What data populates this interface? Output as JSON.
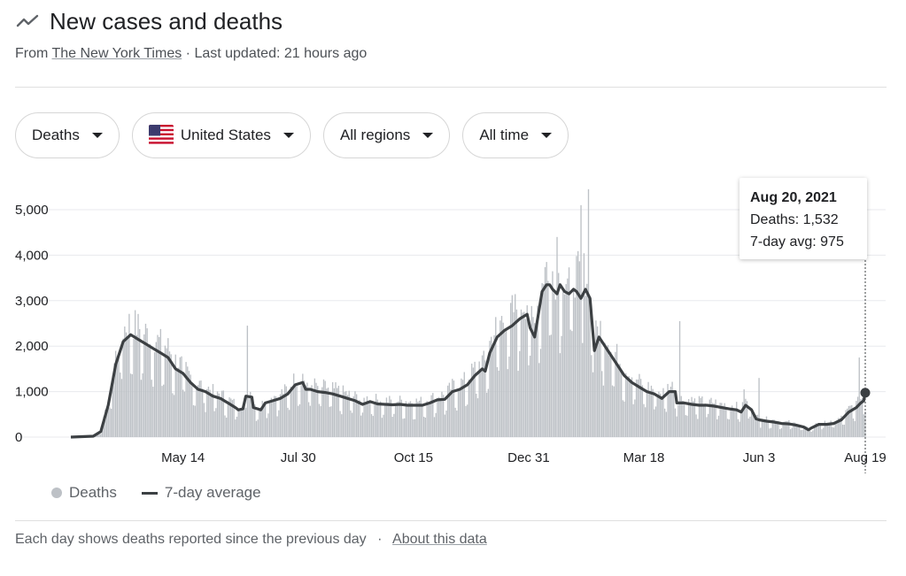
{
  "header": {
    "title": "New cases and deaths",
    "source_prefix": "From",
    "source_name": "The New York Times",
    "updated": "· Last updated: 21 hours ago"
  },
  "filters": {
    "metric": "Deaths",
    "country": "United States",
    "region": "All regions",
    "time": "All time"
  },
  "tooltip": {
    "date": "Aug 20, 2021",
    "deaths": "Deaths: 1,532",
    "avg": "7-day avg: 975"
  },
  "legend": {
    "bars": "Deaths",
    "line": "7-day average"
  },
  "footer": {
    "note": "Each day shows deaths reported since the previous day",
    "sep": "·",
    "link": "About this data"
  },
  "colors": {
    "bar": "#bdc1c6",
    "line": "#3c4043",
    "grid": "#e8eaed",
    "text": "#202124",
    "axis": "#5f6368"
  },
  "chart_data": {
    "type": "bar",
    "title": "New cases and deaths",
    "series": [
      {
        "name": "Deaths",
        "kind": "bar"
      },
      {
        "name": "7-day average",
        "kind": "line"
      }
    ],
    "x_range_days": [
      0,
      531
    ],
    "x_start_date": "2020-02-29",
    "xticks": [
      {
        "day": 75,
        "label": "May 14"
      },
      {
        "day": 152,
        "label": "Jul 30"
      },
      {
        "day": 229,
        "label": "Oct 15"
      },
      {
        "day": 306,
        "label": "Dec 31"
      },
      {
        "day": 383,
        "label": "Mar 18"
      },
      {
        "day": 460,
        "label": "Jun 3"
      },
      {
        "day": 537,
        "label": "Aug 19"
      }
    ],
    "yticks": [
      0,
      1000,
      2000,
      3000,
      4000,
      5000
    ],
    "ytick_labels": [
      "0",
      "1,000",
      "2,000",
      "3,000",
      "4,000",
      "5,000"
    ],
    "ylim": [
      0,
      5500
    ],
    "avg_points": [
      [
        0,
        0
      ],
      [
        15,
        20
      ],
      [
        20,
        120
      ],
      [
        25,
        700
      ],
      [
        30,
        1600
      ],
      [
        35,
        2100
      ],
      [
        40,
        2250
      ],
      [
        45,
        2150
      ],
      [
        50,
        2050
      ],
      [
        55,
        1950
      ],
      [
        60,
        1850
      ],
      [
        65,
        1750
      ],
      [
        70,
        1500
      ],
      [
        75,
        1400
      ],
      [
        80,
        1200
      ],
      [
        85,
        1050
      ],
      [
        90,
        1000
      ],
      [
        95,
        900
      ],
      [
        100,
        850
      ],
      [
        105,
        750
      ],
      [
        110,
        650
      ],
      [
        112,
        600
      ],
      [
        115,
        620
      ],
      [
        117,
        900
      ],
      [
        121,
        880
      ],
      [
        122,
        650
      ],
      [
        127,
        600
      ],
      [
        130,
        750
      ],
      [
        135,
        800
      ],
      [
        140,
        850
      ],
      [
        145,
        950
      ],
      [
        150,
        1150
      ],
      [
        155,
        1200
      ],
      [
        157,
        1050
      ],
      [
        160,
        1050
      ],
      [
        165,
        1000
      ],
      [
        170,
        980
      ],
      [
        175,
        950
      ],
      [
        180,
        900
      ],
      [
        185,
        850
      ],
      [
        190,
        800
      ],
      [
        195,
        720
      ],
      [
        200,
        780
      ],
      [
        205,
        730
      ],
      [
        210,
        720
      ],
      [
        215,
        710
      ],
      [
        220,
        720
      ],
      [
        225,
        700
      ],
      [
        230,
        700
      ],
      [
        235,
        700
      ],
      [
        240,
        750
      ],
      [
        245,
        820
      ],
      [
        250,
        830
      ],
      [
        255,
        1000
      ],
      [
        260,
        1050
      ],
      [
        265,
        1150
      ],
      [
        270,
        1350
      ],
      [
        275,
        1500
      ],
      [
        277,
        1450
      ],
      [
        280,
        1850
      ],
      [
        285,
        2200
      ],
      [
        290,
        2350
      ],
      [
        295,
        2450
      ],
      [
        300,
        2600
      ],
      [
        305,
        2700
      ],
      [
        307,
        2400
      ],
      [
        310,
        2200
      ],
      [
        313,
        2800
      ],
      [
        315,
        3200
      ],
      [
        318,
        3350
      ],
      [
        320,
        3350
      ],
      [
        322,
        3250
      ],
      [
        325,
        3150
      ],
      [
        327,
        3350
      ],
      [
        330,
        3200
      ],
      [
        333,
        3150
      ],
      [
        336,
        3250
      ],
      [
        338,
        3200
      ],
      [
        341,
        3050
      ],
      [
        344,
        3250
      ],
      [
        347,
        3050
      ],
      [
        350,
        1900
      ],
      [
        353,
        2200
      ],
      [
        356,
        2050
      ],
      [
        360,
        1850
      ],
      [
        365,
        1600
      ],
      [
        370,
        1350
      ],
      [
        375,
        1200
      ],
      [
        380,
        1100
      ],
      [
        385,
        1000
      ],
      [
        390,
        950
      ],
      [
        395,
        850
      ],
      [
        400,
        1000
      ],
      [
        404,
        1000
      ],
      [
        405,
        750
      ],
      [
        410,
        750
      ],
      [
        415,
        720
      ],
      [
        420,
        700
      ],
      [
        425,
        700
      ],
      [
        430,
        680
      ],
      [
        435,
        650
      ],
      [
        440,
        620
      ],
      [
        445,
        600
      ],
      [
        448,
        550
      ],
      [
        451,
        700
      ],
      [
        455,
        600
      ],
      [
        458,
        400
      ],
      [
        460,
        380
      ],
      [
        465,
        350
      ],
      [
        470,
        330
      ],
      [
        475,
        300
      ],
      [
        480,
        290
      ],
      [
        485,
        260
      ],
      [
        490,
        220
      ],
      [
        493,
        160
      ],
      [
        495,
        200
      ],
      [
        500,
        280
      ],
      [
        505,
        280
      ],
      [
        510,
        300
      ],
      [
        515,
        380
      ],
      [
        520,
        550
      ],
      [
        525,
        650
      ],
      [
        528,
        750
      ],
      [
        530,
        800
      ],
      [
        531,
        975
      ]
    ],
    "spikes": [
      {
        "day": 325,
        "value": 4400
      },
      {
        "day": 341,
        "value": 5100
      },
      {
        "day": 346,
        "value": 5450
      },
      {
        "day": 118,
        "value": 2450
      },
      {
        "day": 407,
        "value": 2550
      },
      {
        "day": 460,
        "value": 1300
      },
      {
        "day": 450,
        "value": 1050
      },
      {
        "day": 527,
        "value": 1750
      }
    ],
    "highlight": {
      "day": 531,
      "value": 975
    }
  }
}
